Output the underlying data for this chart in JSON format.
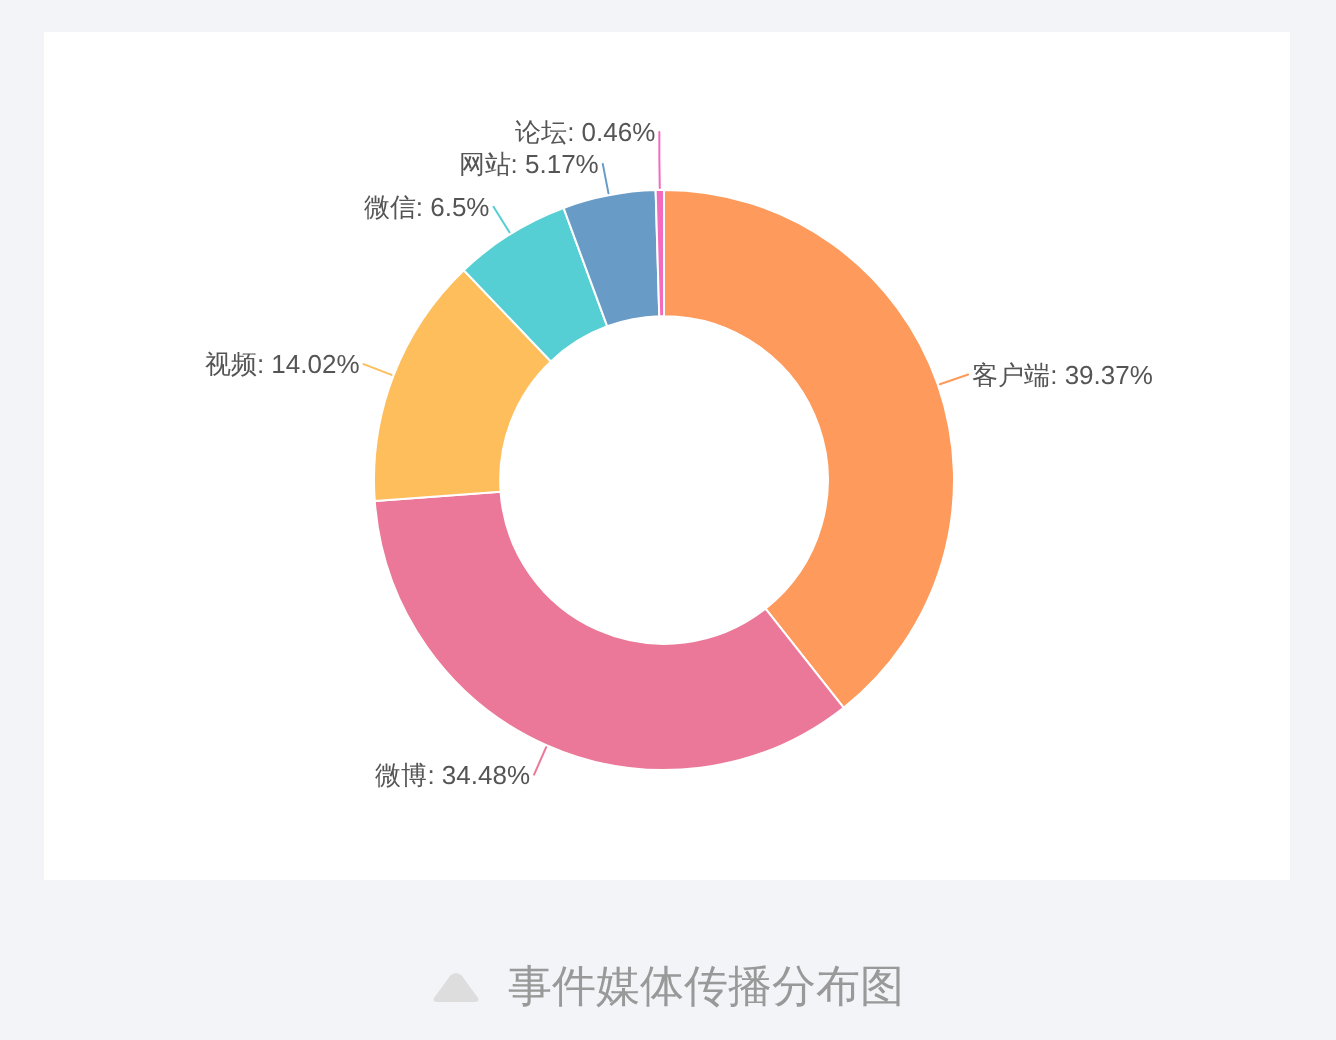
{
  "chart_data": {
    "type": "donut",
    "categories": [
      "客户端",
      "微博",
      "视频",
      "微信",
      "网站",
      "论坛"
    ],
    "values": [
      39.37,
      34.48,
      14.02,
      6.5,
      5.17,
      0.46
    ],
    "value_labels": [
      "39.37%",
      "34.48%",
      "14.02%",
      "6.5%",
      "5.17%",
      "0.46%"
    ],
    "colors": [
      "#fe9a5b",
      "#eb7899",
      "#febe5c",
      "#55cfd3",
      "#689cc6",
      "#f36bbf"
    ],
    "annotations": [
      "事件媒体传播分布图"
    ]
  }
}
